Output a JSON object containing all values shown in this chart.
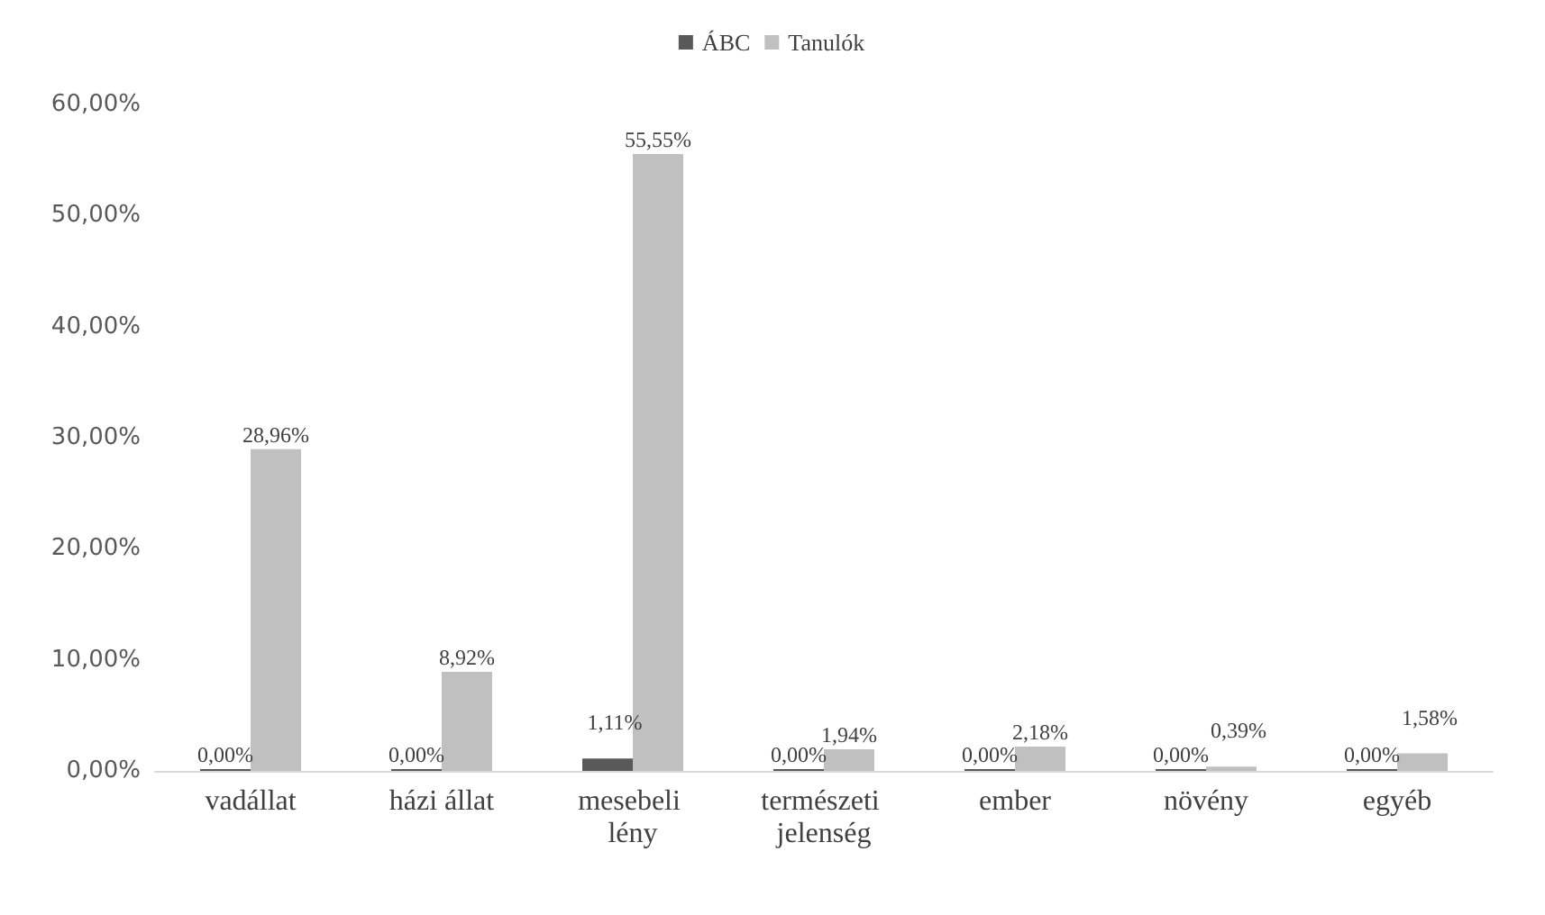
{
  "chart_data": {
    "type": "bar",
    "categories": [
      "vadállat",
      "házi állat",
      "mesebeli lény",
      "természeti jelenség",
      "ember",
      "növény",
      "egyéb"
    ],
    "series": [
      {
        "name": "ÁBC",
        "color": "#595959",
        "values": [
          0,
          0,
          1.11,
          0,
          0,
          0,
          0
        ],
        "value_labels": [
          "0,00%",
          "0,00%",
          "1,11%",
          "0,00%",
          "0,00%",
          "0,00%",
          "0,00%"
        ]
      },
      {
        "name": "Tanulók",
        "color": "#c0c0c0",
        "values": [
          28.96,
          8.92,
          55.55,
          1.94,
          2.18,
          0.39,
          1.58
        ],
        "value_labels": [
          "28,96%",
          "8,92%",
          "55,55%",
          "1,94%",
          "2,18%",
          "0,39%",
          "1,58%"
        ]
      }
    ],
    "ylim": [
      0,
      60
    ],
    "yticks": [
      {
        "value": 0,
        "label": "0,00%"
      },
      {
        "value": 10,
        "label": "10,00%"
      },
      {
        "value": 20,
        "label": "20,00%"
      },
      {
        "value": 30,
        "label": "30,00%"
      },
      {
        "value": 40,
        "label": "40,00%"
      },
      {
        "value": 50,
        "label": "50,00%"
      },
      {
        "value": 60,
        "label": "60,00%"
      }
    ],
    "grid": false,
    "legend": "top"
  }
}
